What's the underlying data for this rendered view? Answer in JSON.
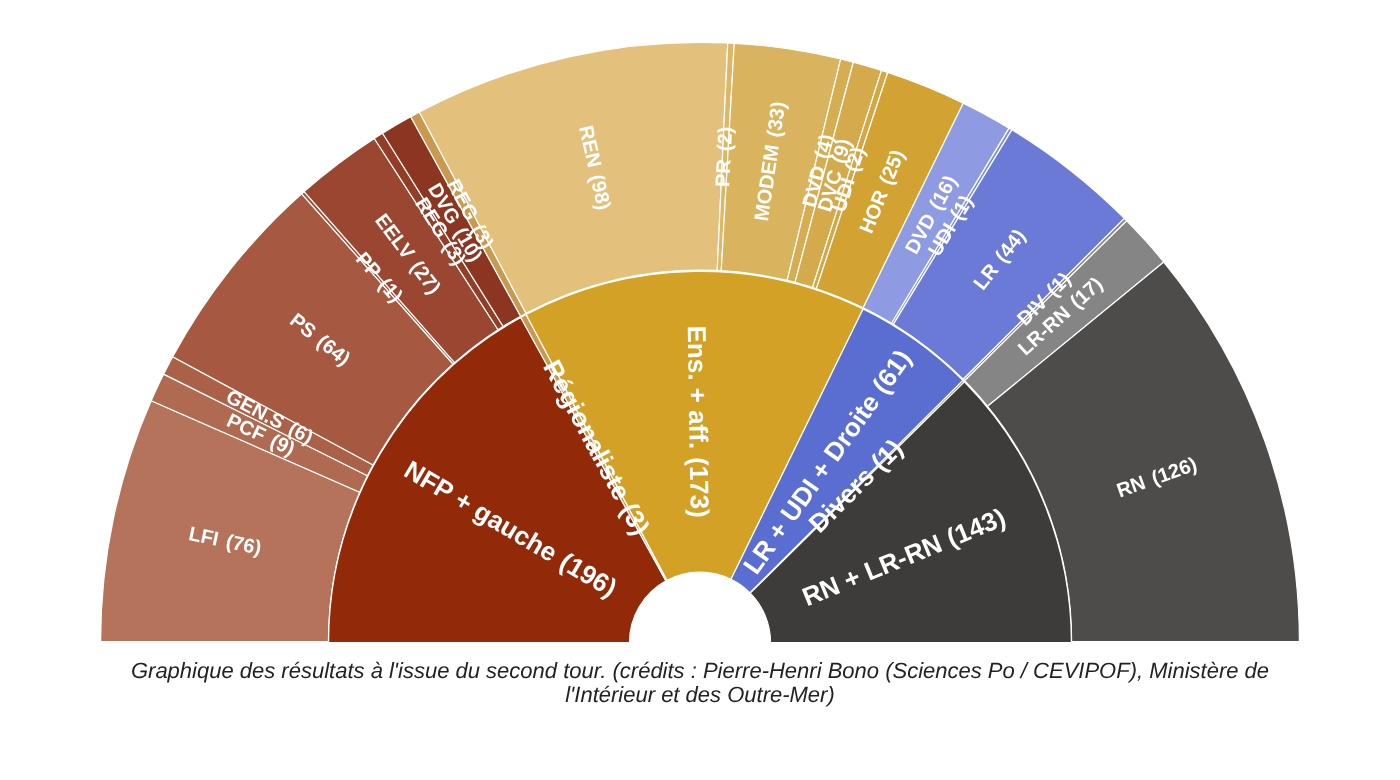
{
  "chart_data": [
    {
      "type": "donut",
      "categories": [
        "NFP + gauche",
        "Régionaliste",
        "Ens. + aff.",
        "LR + UDI + Droite",
        "Divers",
        "RN + LR-RN"
      ],
      "values": [
        196,
        3,
        173,
        61,
        1,
        143
      ],
      "value_labels": [
        "(196)",
        "(3)",
        "(173)",
        "(61)",
        "(1)",
        "(143)"
      ],
      "colors": [
        "#922a0a",
        "#c9994f",
        "#d3a125",
        "#5a6ed2",
        "#7f7f7f",
        "#3d3c3a"
      ]
    },
    {
      "type": "donut",
      "categories": [
        "LFI",
        "PCF",
        "GEN.S",
        "PS",
        "PP",
        "EELV",
        "REG",
        "DVG",
        "REG",
        "REN",
        "PR",
        "MODEM",
        "DVD",
        "DVC",
        "UDI",
        "HOR",
        "DVD",
        "UDI",
        "LR",
        "DIV",
        "LR-RN",
        "RN"
      ],
      "values": [
        76,
        9,
        6,
        64,
        1,
        27,
        3,
        10,
        3,
        98,
        2,
        33,
        4,
        9,
        2,
        25,
        16,
        1,
        44,
        1,
        17,
        126
      ],
      "value_labels": [
        "(76)",
        "(9)",
        "(6)",
        "(64)",
        "(1)",
        "(27)",
        "(3)",
        "(10)",
        "(3)",
        "(98)",
        "(2)",
        "(33)",
        "(4)",
        "(9)",
        "(2)",
        "(25)",
        "(16)",
        "(1)",
        "(44)",
        "(1)",
        "(17)",
        "(126)"
      ],
      "colors": [
        "#b6735b",
        "#b06a52",
        "#ab6148",
        "#a65940",
        "#a04f37",
        "#9b4630",
        "#933c26",
        "#8c3520",
        "#c9994f",
        "#e3c17c",
        "#ddb666",
        "#dab35f",
        "#d7ad52",
        "#d5aa4c",
        "#d3a646",
        "#d2a232",
        "#8e9ae2",
        "#7f8cdc",
        "#6a7ad6",
        "#8a8a8a",
        "#858585",
        "#4d4c4a"
      ],
      "annotations": [
        "Graphique des résultats à l'issue du second tour. (crédits : Pierre-Henri Bono (Sciences Po / CEVIPOF), Ministère de l'Intérieur et des Outre-Mer)"
      ]
    }
  ]
}
